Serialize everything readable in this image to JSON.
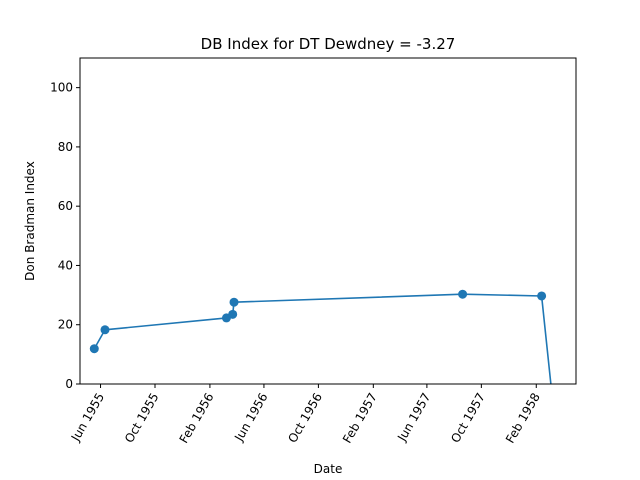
{
  "chart_data": {
    "type": "line",
    "title": "DB Index for DT Dewdney = -3.27",
    "xlabel": "Date",
    "ylabel": "Don Bradman Index",
    "ylim": [
      0,
      110
    ],
    "xlim": [
      "1955-04-16",
      "1958-05-01"
    ],
    "grid": false,
    "yticks": [
      0,
      20,
      40,
      60,
      80,
      100
    ],
    "xticks": [
      {
        "date": "1955-06-01",
        "label": "Jun 1955"
      },
      {
        "date": "1955-10-01",
        "label": "Oct 1955"
      },
      {
        "date": "1956-02-01",
        "label": "Feb 1956"
      },
      {
        "date": "1956-06-01",
        "label": "Jun 1956"
      },
      {
        "date": "1956-10-01",
        "label": "Oct 1956"
      },
      {
        "date": "1957-02-01",
        "label": "Feb 1957"
      },
      {
        "date": "1957-06-01",
        "label": "Jun 1957"
      },
      {
        "date": "1957-10-01",
        "label": "Oct 1957"
      },
      {
        "date": "1958-02-01",
        "label": "Feb 1958"
      }
    ],
    "series": [
      {
        "color": "#1f77b4",
        "points": [
          {
            "x": "1955-05-18",
            "y": 11.9,
            "marker": true
          },
          {
            "x": "1955-06-11",
            "y": 18.3,
            "marker": true
          },
          {
            "x": "1956-03-09",
            "y": 22.3,
            "marker": true
          },
          {
            "x": "1956-03-23",
            "y": 23.5,
            "marker": true
          },
          {
            "x": "1956-03-26",
            "y": 27.6,
            "marker": true
          },
          {
            "x": "1957-08-20",
            "y": 30.3,
            "marker": true
          },
          {
            "x": "1958-02-13",
            "y": 29.7,
            "marker": true
          },
          {
            "x": "1958-03-08",
            "y": -3.27,
            "marker": false
          }
        ]
      }
    ]
  }
}
